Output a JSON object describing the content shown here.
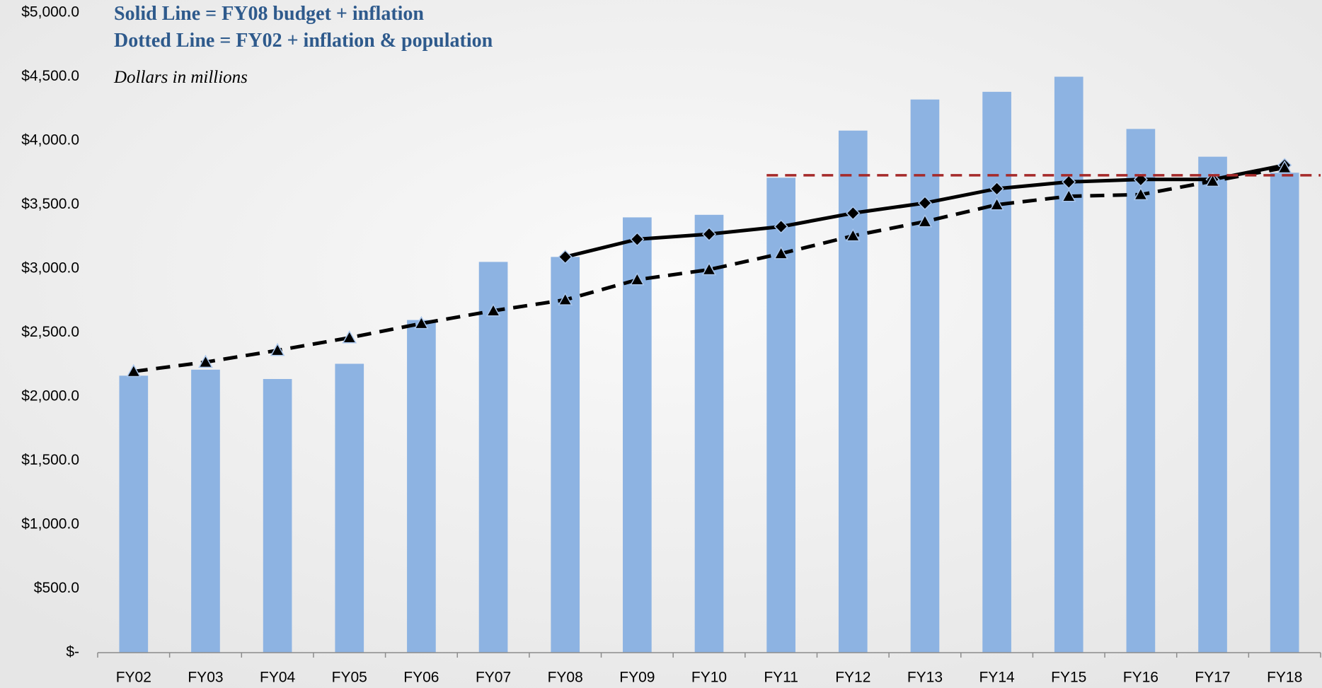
{
  "chart_data": {
    "type": "bar",
    "annotations": [
      "Solid Line = FY08 budget + inflation",
      "Dotted Line = FY02 + inflation & population",
      "Dollars in millions"
    ],
    "categories": [
      "FY02",
      "FY03",
      "FY04",
      "FY05",
      "FY06",
      "FY07",
      "FY08",
      "FY09",
      "FY10",
      "FY11",
      "FY12",
      "FY13",
      "FY14",
      "FY15",
      "FY16",
      "FY17",
      "FY18"
    ],
    "values": [
      2164,
      2211,
      2138,
      2257,
      2599,
      3053,
      3092,
      3401,
      3421,
      3711,
      4079,
      4322,
      4382,
      4500,
      4092,
      3875,
      3750
    ],
    "color": "#8db3e2",
    "series": [
      {
        "style": "solid",
        "marker": "diamond",
        "color": "#000000",
        "values": [
          null,
          null,
          null,
          null,
          null,
          null,
          3092,
          3230,
          3270,
          3329,
          3434,
          3513,
          3625,
          3678,
          3697,
          3697,
          3809
        ]
      },
      {
        "style": "dashed",
        "marker": "triangle",
        "color": "#000000",
        "values": [
          2197,
          2270,
          2362,
          2461,
          2572,
          2671,
          2757,
          2914,
          2993,
          3118,
          3257,
          3368,
          3500,
          3566,
          3579,
          3684,
          3789
        ]
      },
      {
        "style": "dashed",
        "marker": "none",
        "color": "#a52a2a",
        "values": [
          null,
          null,
          null,
          null,
          null,
          null,
          null,
          null,
          null,
          3730,
          3730,
          3730,
          3730,
          3730,
          3730,
          3730,
          3730
        ]
      }
    ],
    "ylim": [
      0,
      5000
    ],
    "yticks": [
      {
        "value": 0,
        "label": "$-"
      },
      {
        "value": 500,
        "label": "$500.0"
      },
      {
        "value": 1000,
        "label": "$1,000.0"
      },
      {
        "value": 1500,
        "label": "$1,500.0"
      },
      {
        "value": 2000,
        "label": "$2,000.0"
      },
      {
        "value": 2500,
        "label": "$2,500.0"
      },
      {
        "value": 3000,
        "label": "$3,000.0"
      },
      {
        "value": 3500,
        "label": "$3,500.0"
      },
      {
        "value": 4000,
        "label": "$4,000.0"
      },
      {
        "value": 4500,
        "label": "$4,500.0"
      },
      {
        "value": 5000,
        "label": "$5,000.0"
      }
    ],
    "grid": false
  }
}
